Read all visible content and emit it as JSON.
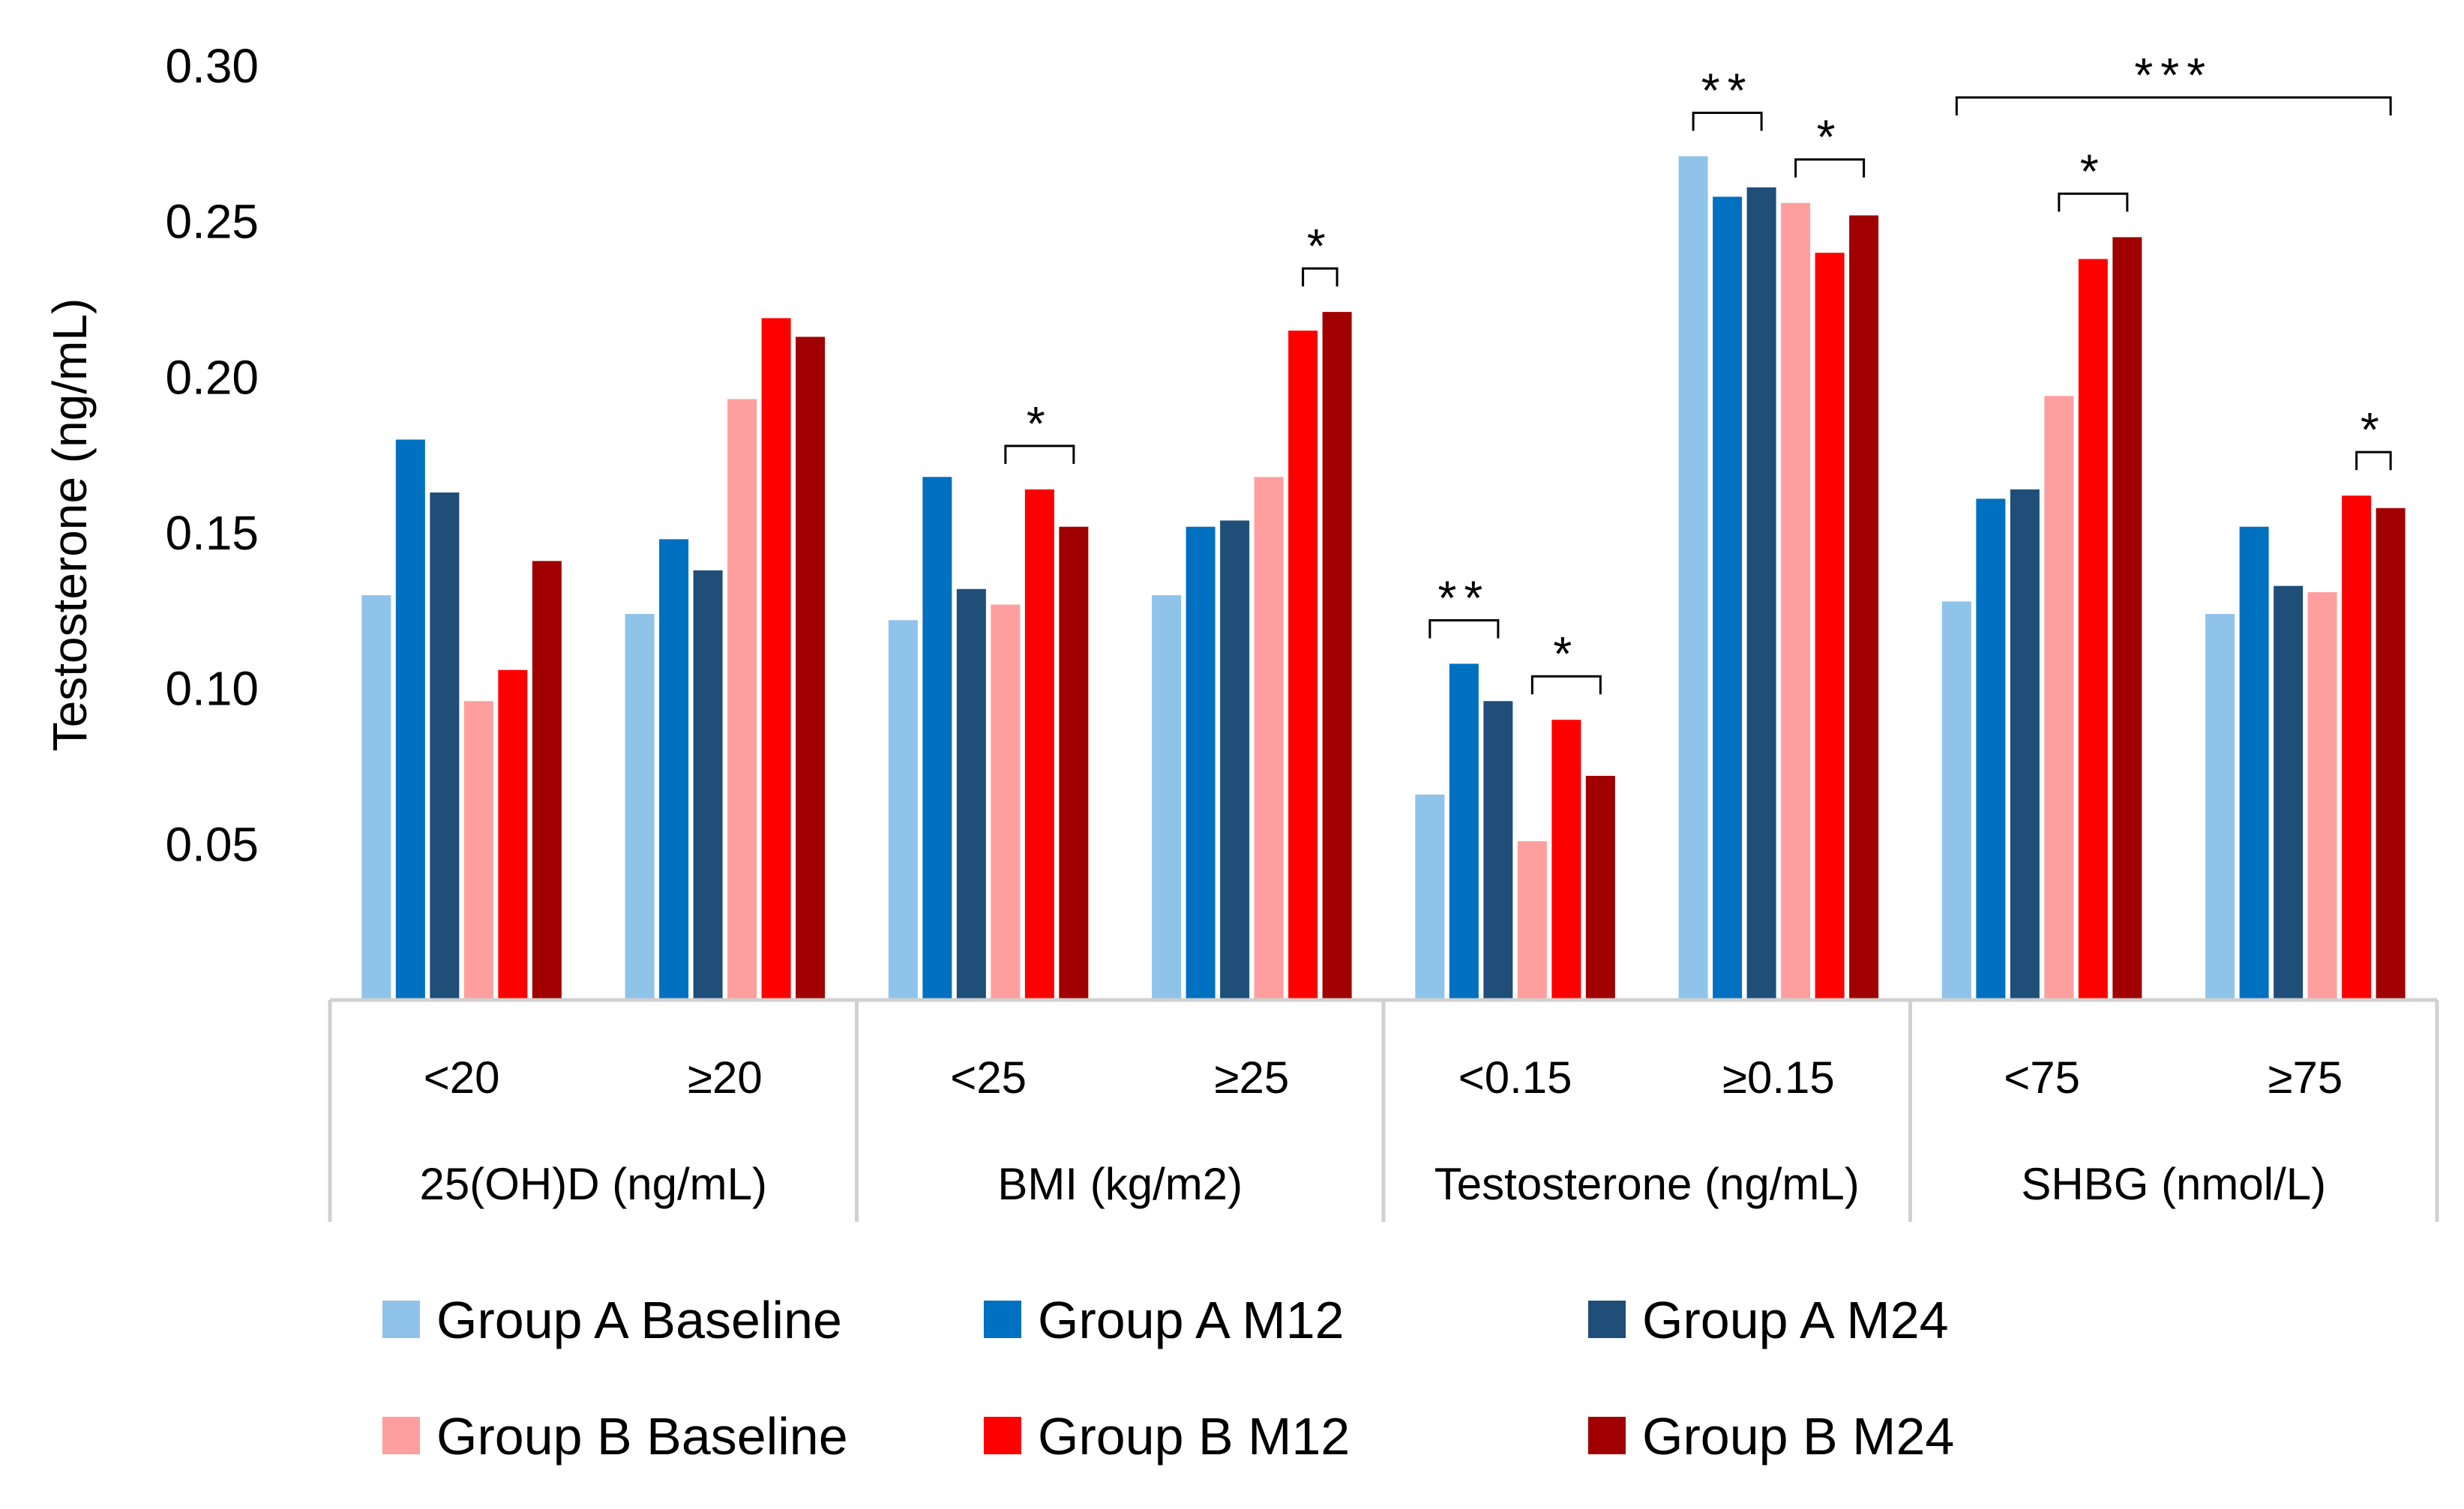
{
  "chart_data": {
    "type": "bar",
    "title": "",
    "ylabel": "Testosterone (ng/mL)",
    "xlabel": "",
    "ylim": [
      0,
      0.3
    ],
    "yticks": [
      "0.05",
      "0.10",
      "0.15",
      "0.20",
      "0.25",
      "0.30"
    ],
    "ytick_values": [
      0.05,
      0.1,
      0.15,
      0.2,
      0.25,
      0.3
    ],
    "grid": false,
    "categories": [
      "<20",
      "≥20",
      "<25",
      "≥25",
      "<0.15",
      "≥0.15",
      "<75",
      "≥75"
    ],
    "groups": [
      {
        "label": "25(OH)D (ng/mL)",
        "categories": [
          0,
          1
        ]
      },
      {
        "label": "BMI (kg/m2)",
        "categories": [
          2,
          3
        ]
      },
      {
        "label": "Testosterone (ng/mL)",
        "categories": [
          4,
          5
        ]
      },
      {
        "label": "SHBG (nmol/L)",
        "categories": [
          6,
          7
        ]
      }
    ],
    "series": [
      {
        "name": "Group A Baseline",
        "color": "#8fc3ea",
        "values": [
          0.13,
          0.124,
          0.122,
          0.13,
          0.066,
          0.271,
          0.128,
          0.124
        ]
      },
      {
        "name": "Group A M12",
        "color": "#0070c0",
        "values": [
          0.18,
          0.148,
          0.168,
          0.152,
          0.108,
          0.258,
          0.161,
          0.152
        ]
      },
      {
        "name": "Group A M24",
        "color": "#1f4e79",
        "values": [
          0.163,
          0.138,
          0.132,
          0.154,
          0.096,
          0.261,
          0.164,
          0.133
        ]
      },
      {
        "name": "Group B Baseline",
        "color": "#ff9e9e",
        "values": [
          0.096,
          0.193,
          0.127,
          0.168,
          0.051,
          0.256,
          0.194,
          0.131
        ]
      },
      {
        "name": "Group B M12",
        "color": "#ff0000",
        "values": [
          0.106,
          0.219,
          0.164,
          0.215,
          0.09,
          0.24,
          0.238,
          0.162
        ]
      },
      {
        "name": "Group B M24",
        "color": "#a00000",
        "values": [
          0.141,
          0.213,
          0.152,
          0.221,
          0.072,
          0.252,
          0.245,
          0.158
        ]
      }
    ],
    "significance": [
      {
        "label": "*",
        "category": 2,
        "from_series": 3,
        "to_series": 5
      },
      {
        "label": "*",
        "category": 3,
        "from_series": 4,
        "to_series": 5
      },
      {
        "label": "**",
        "category": 4,
        "from_series": 0,
        "to_series": 2
      },
      {
        "label": "*",
        "category": 4,
        "from_series": 3,
        "to_series": 5
      },
      {
        "label": "**",
        "category": 5,
        "from_series": 0,
        "to_series": 2
      },
      {
        "label": "*",
        "category": 5,
        "from_series": 3,
        "to_series": 5
      },
      {
        "label": "***",
        "category_from": 6,
        "category_to": 7,
        "from_series": 0,
        "to_series": 5
      },
      {
        "label": "*",
        "category": 6,
        "from_series": 3,
        "to_series": 5
      },
      {
        "label": "*",
        "category": 7,
        "from_series": 4,
        "to_series": 5
      }
    ],
    "legend_position": "bottom",
    "axis_color": "#d0d0d0"
  }
}
